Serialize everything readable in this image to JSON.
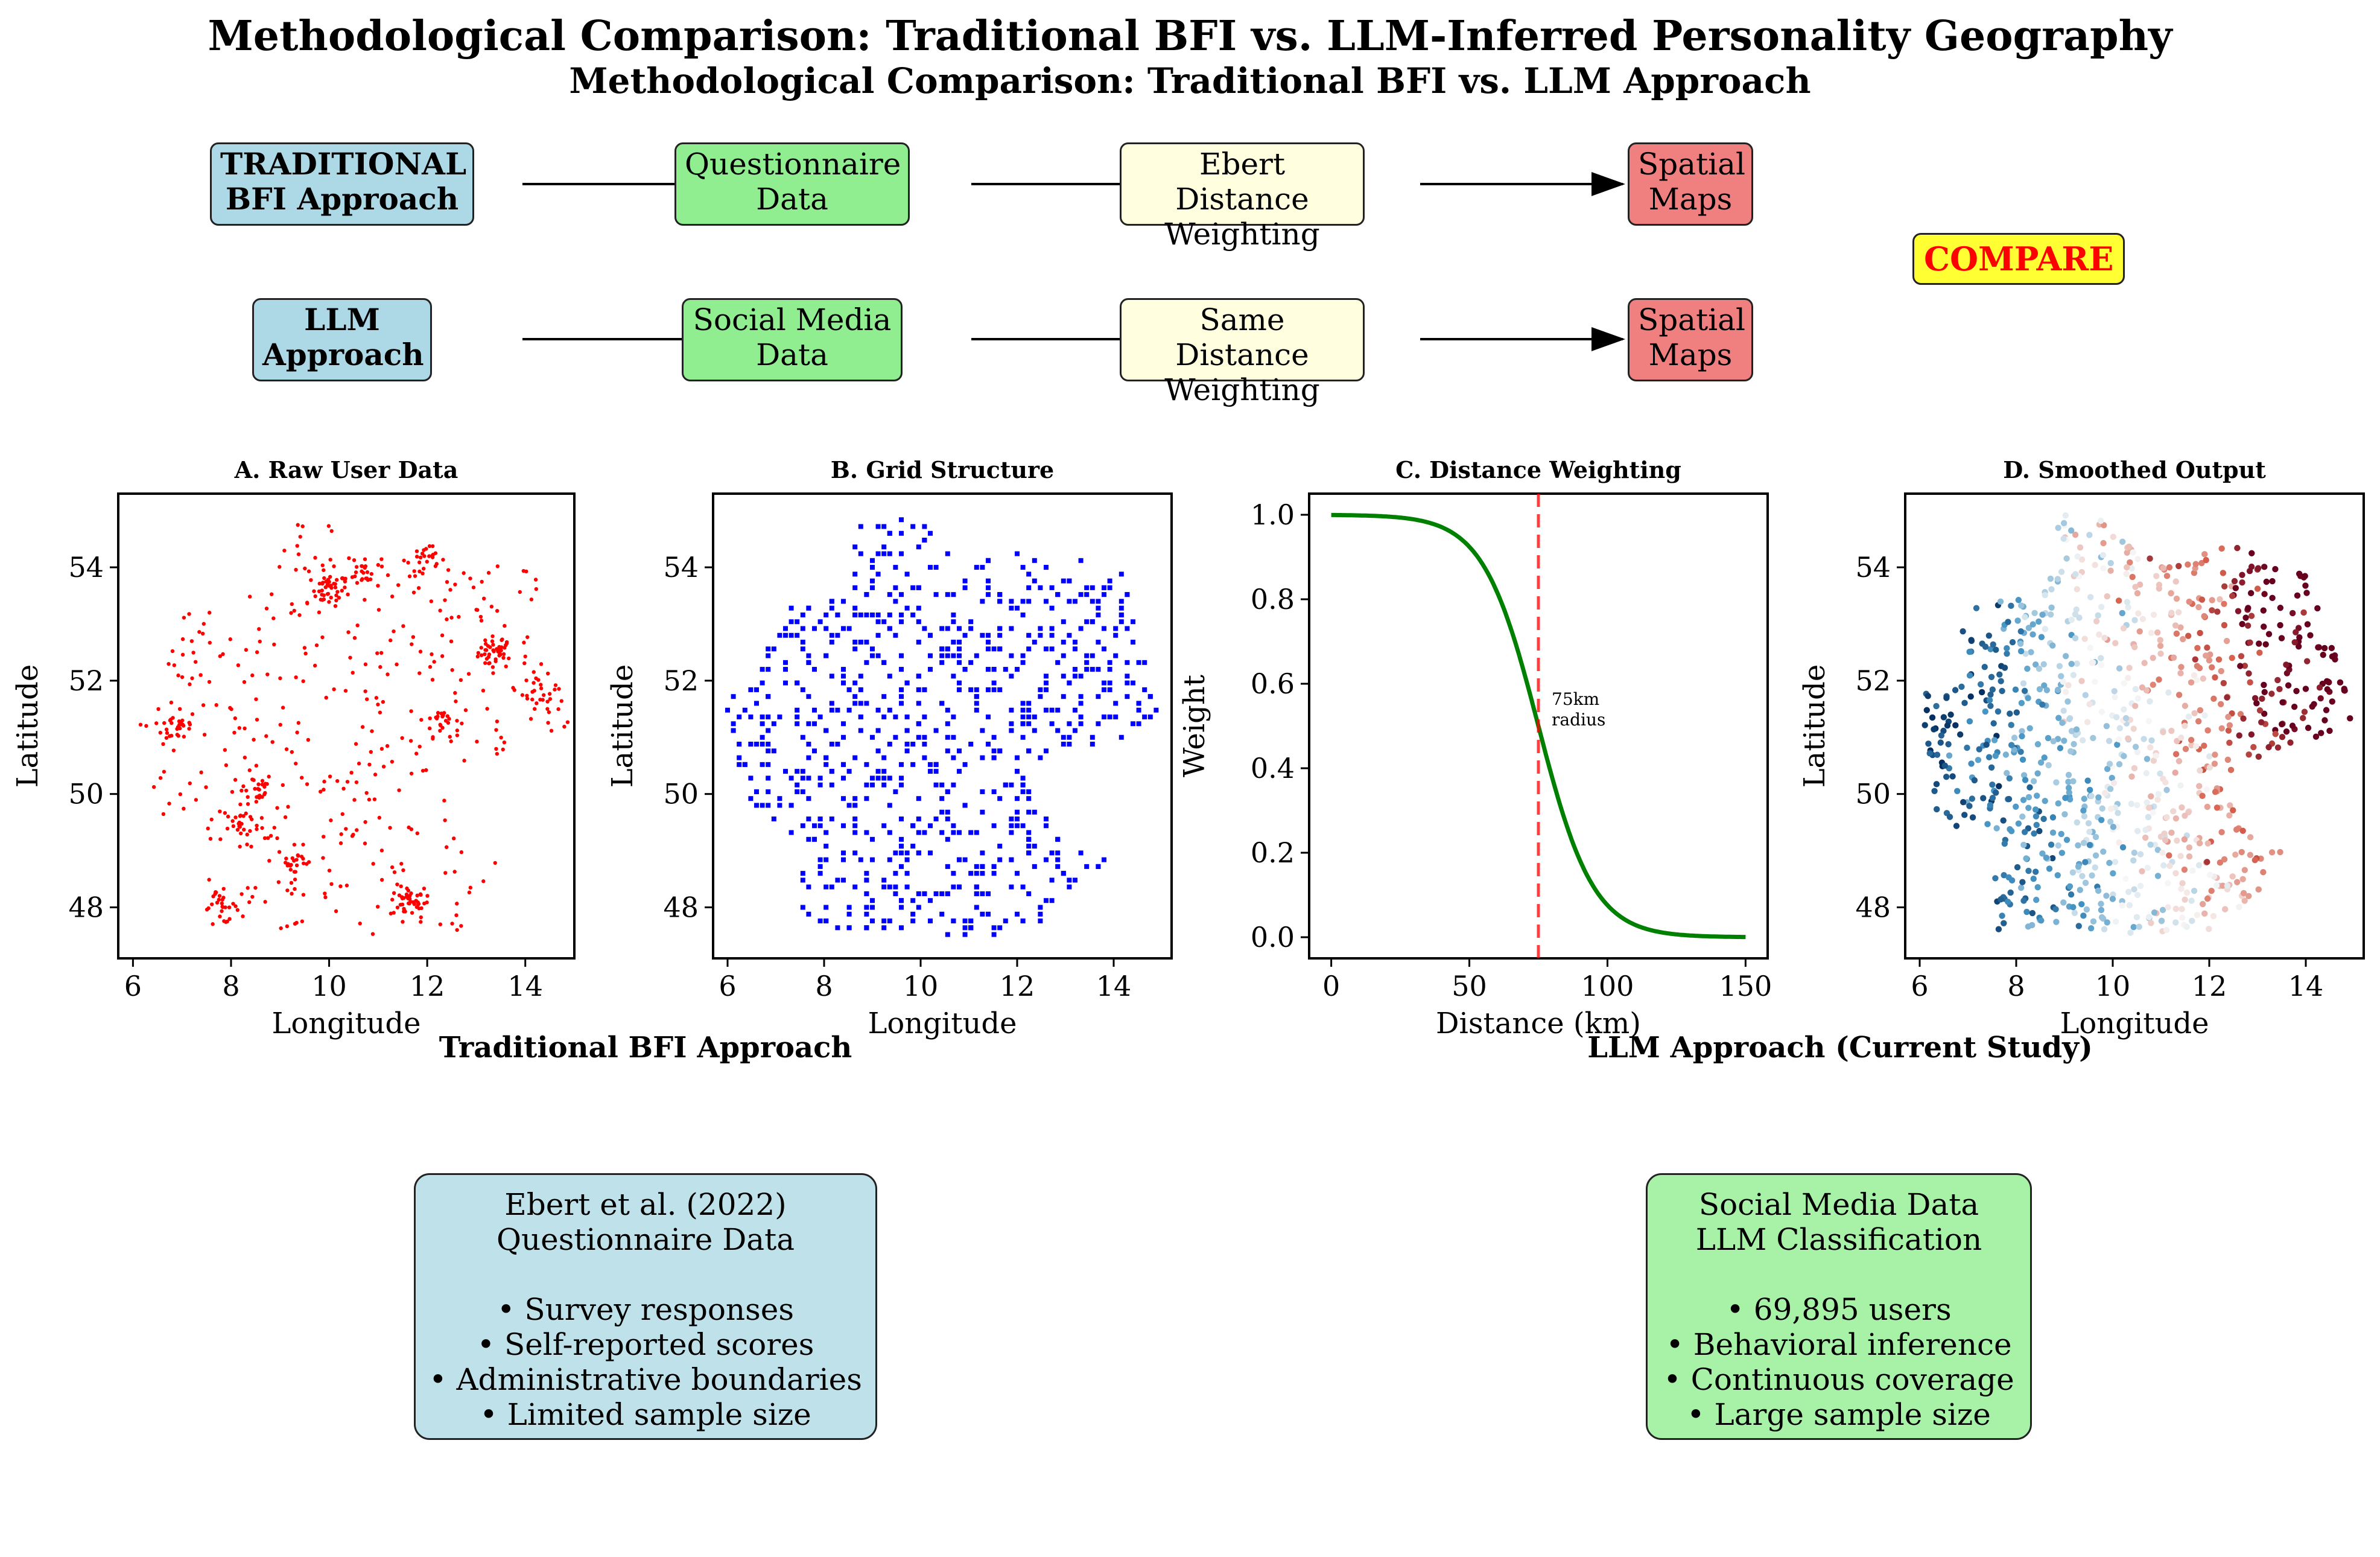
{
  "title": "Methodological Comparison: Traditional BFI vs. LLM-Inferred Personality Geography",
  "subtitle": "Methodological Comparison: Traditional BFI vs. LLM Approach",
  "flow": {
    "row1": [
      "TRADITIONAL\nBFI Approach",
      "Questionnaire\nData",
      "Ebert Distance\nWeighting",
      "Spatial\nMaps"
    ],
    "row2": [
      "LLM\nApproach",
      "Social Media\nData",
      "Same Distance\nWeighting",
      "Spatial\nMaps"
    ],
    "compare": "COMPARE"
  },
  "colors": {
    "blue": "#add8e6",
    "green": "#90ee90",
    "yellow": "#ffffe0",
    "red": "#f08080",
    "compare": "#ffff33",
    "compare_text": "#ff0000"
  },
  "section_labels": {
    "left": "Traditional BFI Approach",
    "right": "LLM Approach (Current Study)"
  },
  "boxes": {
    "left": "Ebert et al. (2022)\nQuestionnaire Data\n\n• Survey responses\n• Self-reported scores\n• Administrative boundaries\n• Limited sample size",
    "right": "Social Media Data\nLLM Classification\n\n• 69,895 users\n• Behavioral inference\n• Continuous coverage\n• Large sample size"
  },
  "chart_data": [
    {
      "type": "scatter",
      "title": "A. Raw User Data",
      "xlabel": "Longitude",
      "ylabel": "Latitude",
      "xlim": [
        5.7,
        15.0
      ],
      "ylim": [
        47.1,
        55.3
      ],
      "xticks": [
        6,
        8,
        10,
        12,
        14
      ],
      "yticks": [
        48,
        50,
        52,
        54
      ],
      "color": "#ff0000",
      "note": "dense clusters of points (simulated user locations)",
      "clusters": [
        [
          13.4,
          52.5
        ],
        [
          10.0,
          53.6
        ],
        [
          11.6,
          48.1
        ],
        [
          8.5,
          50.1
        ],
        [
          6.95,
          51.2
        ],
        [
          12.3,
          51.3
        ],
        [
          8.2,
          49.5
        ],
        [
          10.7,
          53.9
        ],
        [
          14.3,
          51.8
        ],
        [
          9.3,
          48.8
        ],
        [
          7.8,
          48.0
        ],
        [
          12.0,
          54.1
        ]
      ]
    },
    {
      "type": "scatter",
      "title": "B. Grid Structure",
      "xlabel": "Longitude",
      "ylabel": "Latitude",
      "xlim": [
        5.7,
        15.2
      ],
      "ylim": [
        47.1,
        55.3
      ],
      "xticks": [
        6,
        8,
        10,
        12,
        14
      ],
      "yticks": [
        48,
        50,
        52,
        54
      ],
      "color": "#0000ff",
      "note": "grid cells over Germany outline"
    },
    {
      "type": "line",
      "title": "C. Distance Weighting",
      "xlabel": "Distance (km)",
      "ylabel": "Weight",
      "xlim": [
        -8,
        158
      ],
      "ylim": [
        -0.05,
        1.05
      ],
      "xticks": [
        0,
        50,
        100,
        150
      ],
      "yticks": [
        0.0,
        0.2,
        0.4,
        0.6,
        0.8,
        1.0
      ],
      "color": "#008000",
      "function": "1/(1+exp((x-75)/10))",
      "x_range": [
        0,
        150
      ],
      "marker_line": {
        "x": 75,
        "color": "#ff0000"
      },
      "annotation": "75km\nradius"
    },
    {
      "type": "scatter",
      "title": "D. Smoothed Output",
      "xlabel": "Longitude",
      "ylabel": "Latitude",
      "xlim": [
        5.7,
        15.2
      ],
      "ylim": [
        47.1,
        55.3
      ],
      "xticks": [
        6,
        8,
        10,
        12,
        14
      ],
      "yticks": [
        48,
        50,
        52,
        54
      ],
      "colormap": "RdBu_r",
      "note": "west low (blue), east high (red)"
    }
  ]
}
